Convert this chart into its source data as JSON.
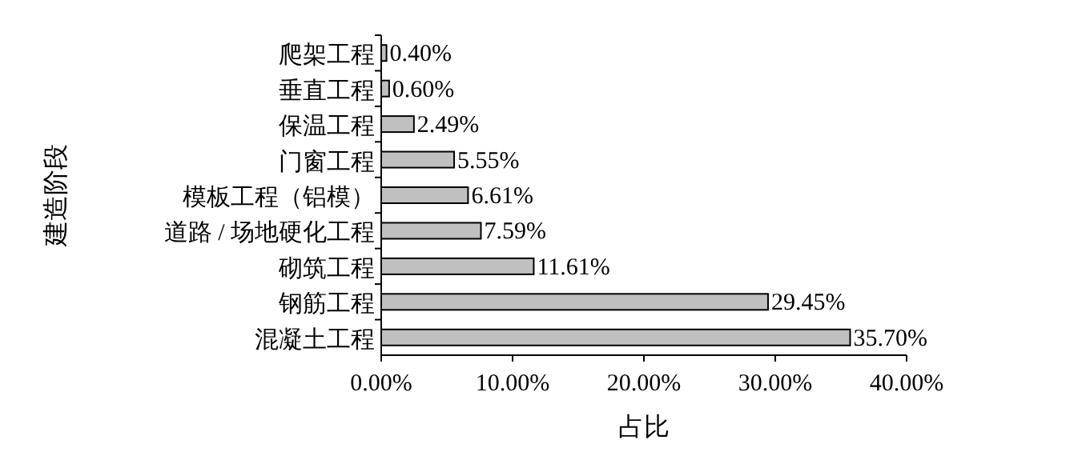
{
  "chart_data": {
    "type": "bar",
    "orientation": "horizontal",
    "xlabel": "占比",
    "ylabel": "建造阶段",
    "categories": [
      "爬架工程",
      "垂直工程",
      "保温工程",
      "门窗工程",
      "模板工程（铝模）",
      "道路 / 场地硬化工程",
      "砌筑工程",
      "钢筋工程",
      "混凝土工程"
    ],
    "series": [
      {
        "color": "#c0c0c0",
        "values": [
          0.4,
          0.6,
          2.49,
          5.55,
          6.61,
          7.59,
          11.61,
          29.45,
          35.7
        ],
        "value_labels": [
          "0.40%",
          "0.60%",
          "2.49%",
          "5.55%",
          "6.61%",
          "7.59%",
          "11.61%",
          "29.45%",
          "35.70%"
        ]
      }
    ],
    "xlim": [
      0,
      40
    ],
    "xticks": [
      {
        "value": 0,
        "label": "0.00%"
      },
      {
        "value": 10,
        "label": "10.00%"
      },
      {
        "value": 20,
        "label": "20.00%"
      },
      {
        "value": 30,
        "label": "30.00%"
      },
      {
        "value": 40,
        "label": "40.00%"
      }
    ],
    "grid": false
  }
}
